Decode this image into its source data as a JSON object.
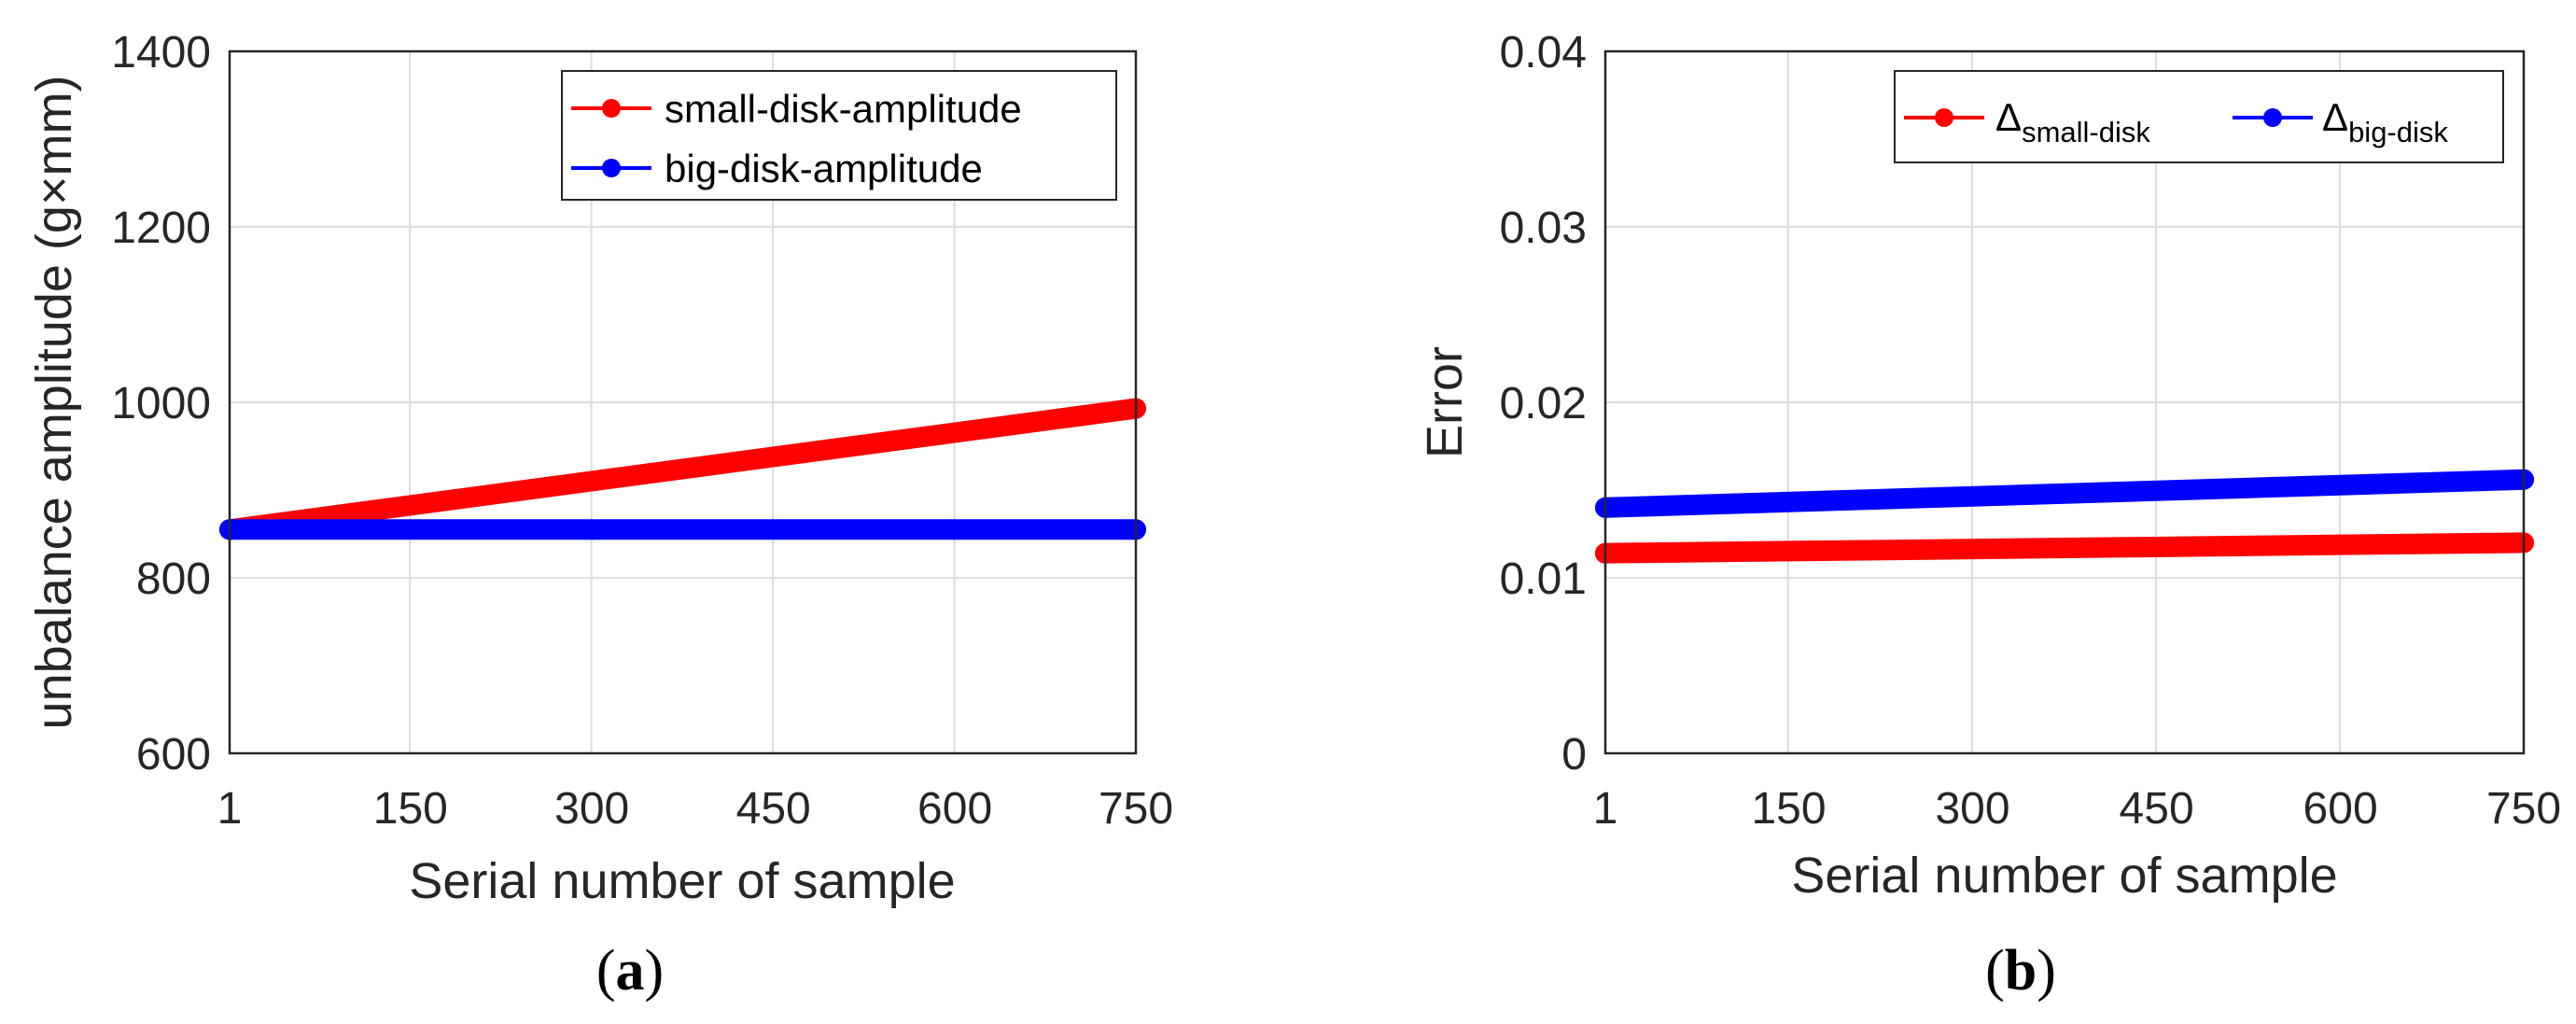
{
  "chart_data": [
    {
      "type": "line",
      "xlabel": "Serial number of sample",
      "ylabel": "unbalance amplitude (g×mm)",
      "xlim": [
        1,
        750
      ],
      "ylim": [
        600,
        1400
      ],
      "xticks": [
        "1",
        "150",
        "300",
        "450",
        "600",
        "750"
      ],
      "yticks": [
        "600",
        "800",
        "1000",
        "1200",
        "1400"
      ],
      "grid": true,
      "legend_position": "top-right",
      "series": [
        {
          "name": "small-disk-amplitude",
          "color": "#ff0000",
          "x": [
            1,
            750
          ],
          "y": [
            855,
            993
          ]
        },
        {
          "name": "big-disk-amplitude",
          "color": "#0000ff",
          "x": [
            1,
            750
          ],
          "y": [
            855,
            855
          ]
        }
      ],
      "caption": {
        "open": "(",
        "letter": "a",
        "close": ")"
      }
    },
    {
      "type": "line",
      "xlabel": "Serial number of sample",
      "ylabel": "Error",
      "xlim": [
        1,
        750
      ],
      "ylim": [
        0,
        0.04
      ],
      "xticks": [
        "1",
        "150",
        "300",
        "450",
        "600",
        "750"
      ],
      "yticks": [
        "0",
        "0.01",
        "0.02",
        "0.03",
        "0.04"
      ],
      "grid": true,
      "legend_position": "top-right",
      "series": [
        {
          "name": "Δsmall-disk",
          "symbol": "Δ",
          "subscript": "small-disk",
          "color": "#ff0000",
          "x": [
            1,
            750
          ],
          "y": [
            0.0114,
            0.012
          ]
        },
        {
          "name": "Δbig-disk",
          "symbol": "Δ",
          "subscript": "big-disk",
          "color": "#0000ff",
          "x": [
            1,
            750
          ],
          "y": [
            0.014,
            0.0156
          ]
        }
      ],
      "caption": {
        "open": "(",
        "letter": "b",
        "close": ")"
      }
    }
  ]
}
